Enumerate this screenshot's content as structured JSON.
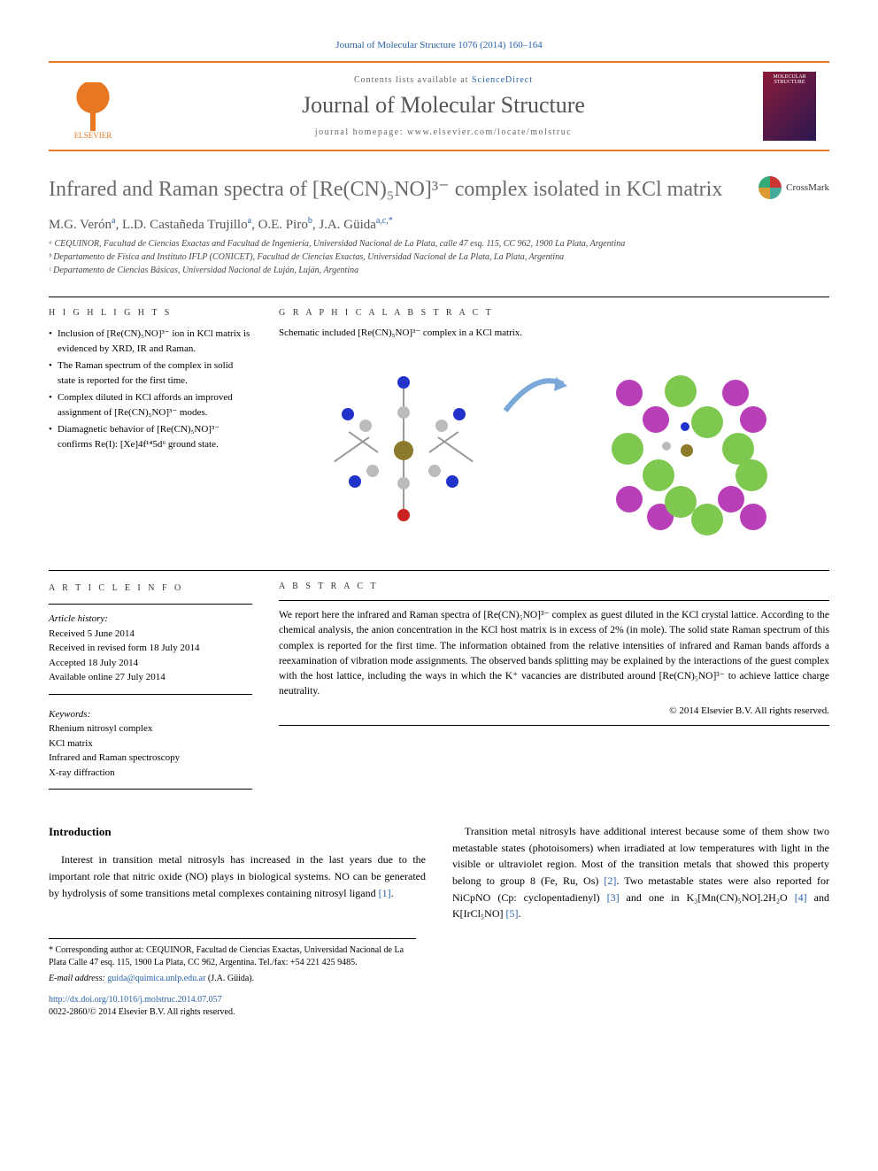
{
  "journal_ref": "Journal of Molecular Structure 1076 (2014) 160–164",
  "header": {
    "publisher_name": "ELSEVIER",
    "contents_prefix": "Contents lists available at ",
    "contents_link": "ScienceDirect",
    "journal_name": "Journal of Molecular Structure",
    "homepage_prefix": "journal homepage: ",
    "homepage_url": "www.elsevier.com/locate/molstruc",
    "cover_text": "MOLECULAR STRUCTURE"
  },
  "title": "Infrared and Raman spectra of [Re(CN)₅NO]³⁻ complex isolated in KCl matrix",
  "crossmark_label": "CrossMark",
  "authors_html": "M.G. Verón<sup>a</sup>, L.D. Castañeda Trujillo<sup>a</sup>, O.E. Piro<sup>b</sup>, J.A. Güida<sup>a,c,*</sup>",
  "affiliations": [
    "ᵃ CEQUINOR, Facultad de Ciencias Exactas and Facultad de Ingeniería, Universidad Nacional de La Plata, calle 47 esq. 115, CC 962, 1900 La Plata, Argentina",
    "ᵇ Departamento de Física and Instituto IFLP (CONICET), Facultad de Ciencias Exactas, Universidad Nacional de La Plata, La Plata, Argentina",
    "ᶜ Departamento de Ciencias Básicas, Universidad Nacional de Luján, Luján, Argentina"
  ],
  "highlights": {
    "label": "H I G H L I G H T S",
    "items": [
      "Inclusion of [Re(CN)₅NO]³⁻ ion in KCl matrix is evidenced by XRD, IR and Raman.",
      "The Raman spectrum of the complex in solid state is reported for the first time.",
      "Complex diluted in KCl affords an improved assignment of [Re(CN)₅NO]³⁻ modes.",
      "Diamagnetic behavior of [Re(CN)₅NO]³⁻ confirms Re(I): [Xe]4f¹⁴5d⁶ ground state."
    ]
  },
  "graphical_abstract": {
    "label": "G R A P H I C A L  A B S T R A C T",
    "caption": "Schematic included [Re(CN)₅NO]³⁻ complex in a KCl matrix.",
    "colors": {
      "center_atom": "#8a7a2a",
      "nitrogen": "#2233cc",
      "carbon": "#bbbbbb",
      "oxygen": "#cc2222",
      "chloride": "#7ec850",
      "potassium": "#b93fb9",
      "arrow": "#7aa8d8"
    }
  },
  "article_info": {
    "label": "A R T I C L E  I N F O",
    "history_label": "Article history:",
    "received": "Received 5 June 2014",
    "revised": "Received in revised form 18 July 2014",
    "accepted": "Accepted 18 July 2014",
    "online": "Available online 27 July 2014",
    "keywords_label": "Keywords:",
    "keywords": [
      "Rhenium nitrosyl complex",
      "KCl matrix",
      "Infrared and Raman spectroscopy",
      "X-ray diffraction"
    ]
  },
  "abstract": {
    "label": "A B S T R A C T",
    "text": "We report here the infrared and Raman spectra of [Re(CN)₅NO]³⁻ complex as guest diluted in the KCl crystal lattice. According to the chemical analysis, the anion concentration in the KCl host matrix is in excess of 2% (in mole). The solid state Raman spectrum of this complex is reported for the first time. The information obtained from the relative intensities of infrared and Raman bands affords a reexamination of vibration mode assignments. The observed bands splitting may be explained by the interactions of the guest complex with the host lattice, including the ways in which the K⁺ vacancies are distributed around [Re(CN)₅NO]³⁻ to achieve lattice charge neutrality.",
    "copyright": "© 2014 Elsevier B.V. All rights reserved."
  },
  "introduction": {
    "heading": "Introduction",
    "para1": "Interest in transition metal nitrosyls has increased in the last years due to the important role that nitric oxide (NO) plays in biological systems. NO can be generated by hydrolysis of some transitions metal complexes containing nitrosyl ligand [1].",
    "para2": "Transition metal nitrosyls have additional interest because some of them show two metastable states (photoisomers) when irradiated at low temperatures with light in the visible or ultraviolet region. Most of the transition metals that showed this property belong to group 8 (Fe, Ru, Os) [2]. Two metastable states were also reported for NiCpNO (Cp: cyclopentadienyl) [3] and one in K₃[Mn(CN)₅NO].2H₂O [4] and K[IrCl₅NO] [5]."
  },
  "footnotes": {
    "corresponding": "* Corresponding author at: CEQUINOR, Facultad de Ciencias Exactas, Universidad Nacional de La Plata Calle 47 esq. 115, 1900 La Plata, CC 962, Argentina. Tel./fax: +54 221 425 9485.",
    "email_label": "E-mail address: ",
    "email": "guida@quimica.unlp.edu.ar",
    "email_suffix": " (J.A. Güida)."
  },
  "doi": {
    "url": "http://dx.doi.org/10.1016/j.molstruc.2014.07.057",
    "issn_line": "0022-2860/© 2014 Elsevier B.V. All rights reserved."
  },
  "style": {
    "accent": "#e87722",
    "link": "#2962a8",
    "title_gray": "#6a6a6a"
  }
}
